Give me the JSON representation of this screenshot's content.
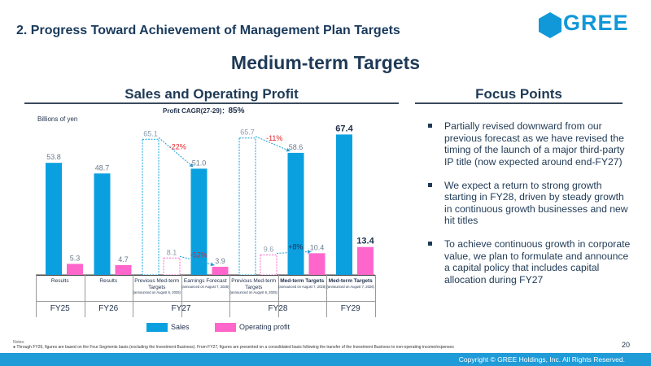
{
  "header": {
    "section_title": "2. Progress Toward Achievement of Management Plan Targets",
    "logo_text": "GREE",
    "brand_color": "#1098d8"
  },
  "main_heading": "Medium-term Targets",
  "left_panel": {
    "title": "Sales and Operating Profit",
    "cagr_label": "Profit CAGR(27-29)：",
    "cagr_value": "85%",
    "units": "Billions of yen"
  },
  "right_panel": {
    "title": "Focus Points",
    "bullets": [
      "Partially revised downward from our previous forecast as we have revised the timing of the launch of a major third-party IP title (now expected around end-FY27)",
      "We expect a return to strong growth starting in FY28, driven by steady growth in continuous growth businesses and new hit titles",
      "To achieve continuous growth in corporate value, we plan to formulate and announce a capital policy that includes capital allocation during FY27"
    ]
  },
  "chart_data": {
    "type": "bar",
    "categories": [
      "Results",
      "Results",
      "Previous Med-term Targets",
      "Earnings Forecast",
      "Previous Med-term Targets",
      "Med-term Targets",
      "Med-term Targets"
    ],
    "category_notes": [
      "",
      "",
      "(announced on August 6, 2025)",
      "(announced on August 7, 2026)",
      "(announced on August 6, 2025)",
      "(announced on August 7, 2026)",
      "(announced on August 7, 2026)"
    ],
    "groups": [
      {
        "label": "FY25",
        "categories": [
          0
        ]
      },
      {
        "label": "FY26",
        "categories": [
          1
        ]
      },
      {
        "label": "FY27",
        "categories": [
          2,
          3
        ]
      },
      {
        "label": "FY28",
        "categories": [
          4,
          5
        ]
      },
      {
        "label": "FY29",
        "categories": [
          6
        ]
      }
    ],
    "series": [
      {
        "name": "Sales",
        "color": "#0aa0e0",
        "values": [
          53.8,
          48.7,
          65.1,
          51.0,
          65.7,
          58.6,
          67.4
        ],
        "labels": [
          "53.8",
          "48.7",
          "65.1",
          "51.0",
          "65.7",
          "58.6",
          "67.4"
        ],
        "dashed": [
          false,
          false,
          true,
          false,
          true,
          false,
          false
        ]
      },
      {
        "name": "Operating profit",
        "color": "#ff66cc",
        "values": [
          5.3,
          4.7,
          8.1,
          3.9,
          9.6,
          10.4,
          13.4
        ],
        "labels": [
          "5.3",
          "4.7",
          "8.1",
          "3.9",
          "9.6",
          "10.4",
          "13.4"
        ],
        "dashed": [
          false,
          false,
          true,
          false,
          true,
          false,
          false
        ]
      }
    ],
    "annotations": [
      {
        "text": "-22%",
        "series": "Sales",
        "from": 2,
        "to": 3,
        "color": "#e8202a"
      },
      {
        "text": "-52%",
        "series": "Operating profit",
        "from": 2,
        "to": 3,
        "color": "#e8202a"
      },
      {
        "text": "-11%",
        "series": "Sales",
        "from": 4,
        "to": 5,
        "color": "#e8202a"
      },
      {
        "text": "+8%",
        "series": "Operating profit",
        "from": 4,
        "to": 5,
        "color": "#1f2f4a"
      }
    ],
    "ylim": [
      0,
      75
    ]
  },
  "notes": {
    "label": "Notes:",
    "text": "●  Through FY26, figures are based on the Four Segments basis (excluding the Investment Business). From FY27, figures are presented on a consolidated basis following the transfer of the Investment Business to non-operating income/expenses"
  },
  "page_number": "20",
  "footer": {
    "copyright": "Copyright © GREE Holdings, Inc. All Rights Reserved."
  }
}
